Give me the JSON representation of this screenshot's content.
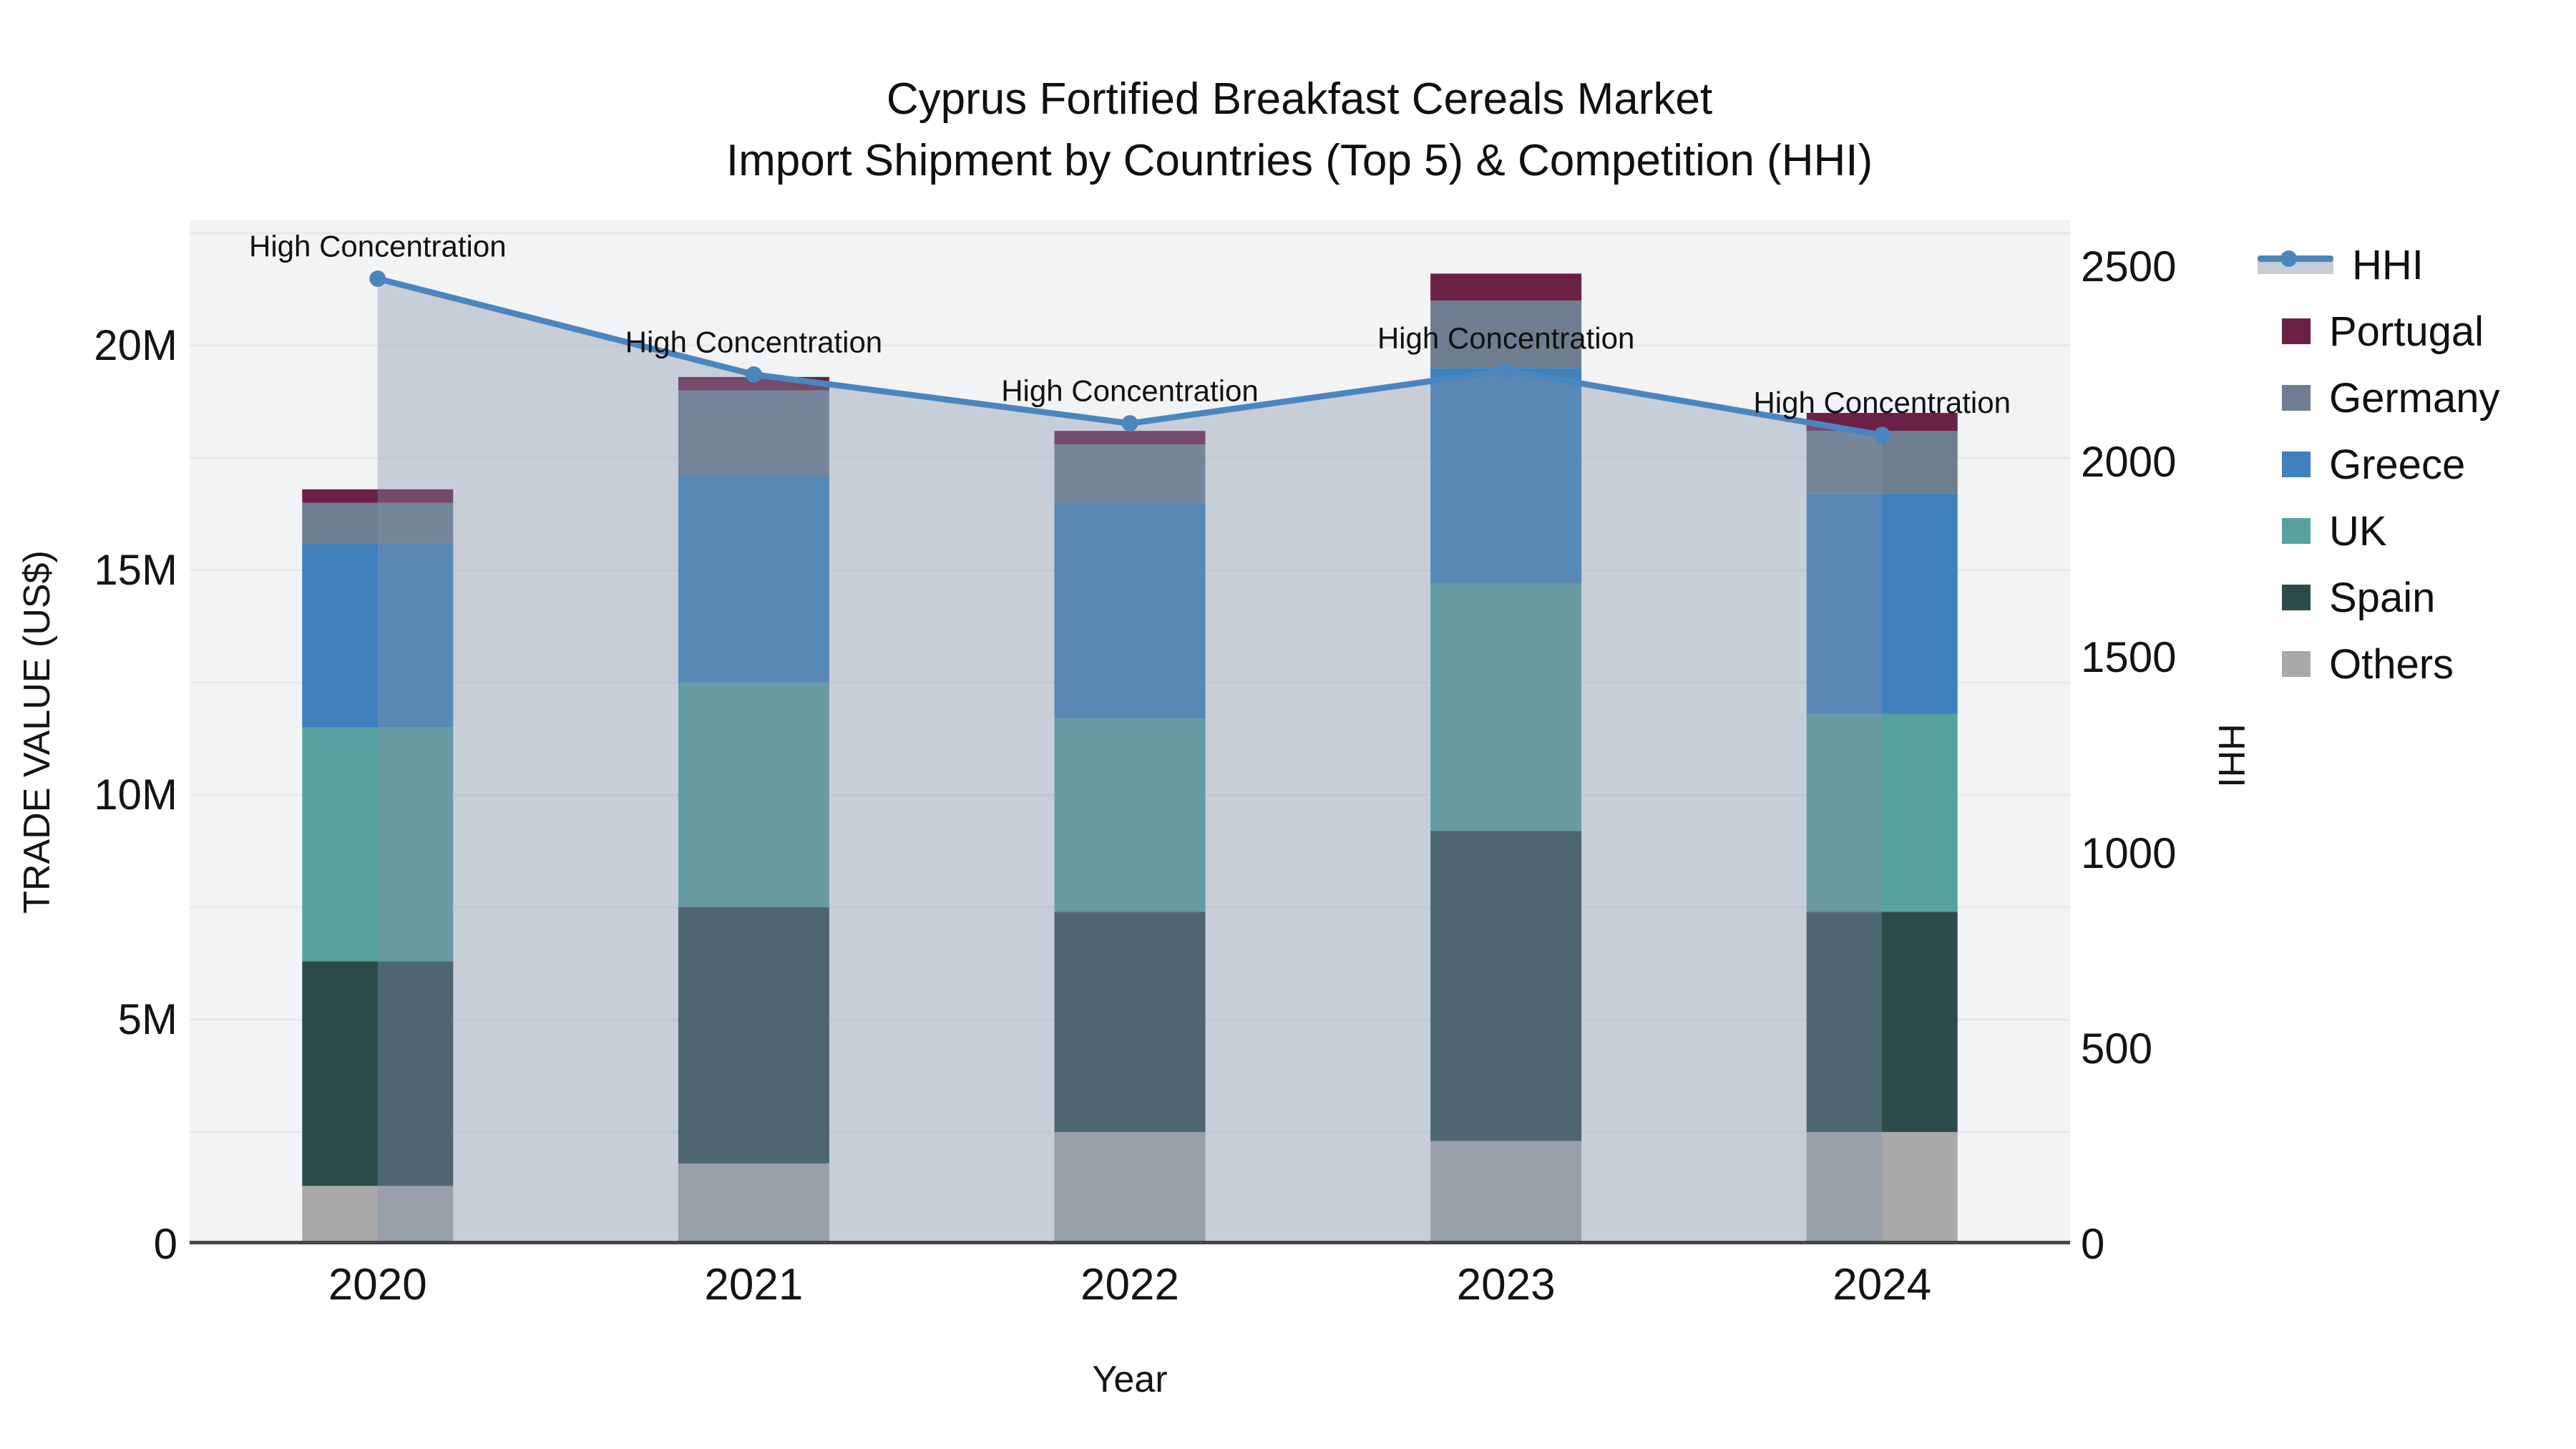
{
  "title": {
    "line1": "Cyprus Fortified Breakfast Cereals Market",
    "line2": "Import Shipment by Countries (Top 5) & Competition (HHI)"
  },
  "axes": {
    "y_left": {
      "title": "TRADE VALUE (US$)",
      "ticks": [
        {
          "label": "0",
          "value": 0
        },
        {
          "label": "5M",
          "value": 5
        },
        {
          "label": "10M",
          "value": 10
        },
        {
          "label": "15M",
          "value": 15
        },
        {
          "label": "20M",
          "value": 20
        }
      ],
      "range": [
        0,
        22.8
      ],
      "gridline_step": 2.5
    },
    "y_right": {
      "title": "HHI",
      "ticks": [
        {
          "label": "0",
          "value": 0
        },
        {
          "label": "500",
          "value": 500
        },
        {
          "label": "1000",
          "value": 1000
        },
        {
          "label": "1500",
          "value": 1500
        },
        {
          "label": "2000",
          "value": 2000
        },
        {
          "label": "2500",
          "value": 2500
        }
      ],
      "range": [
        0,
        2621
      ]
    },
    "x": {
      "title": "Year",
      "categories": [
        "2020",
        "2021",
        "2022",
        "2023",
        "2024"
      ]
    }
  },
  "legend": {
    "items": [
      {
        "label": "HHI",
        "type": "line",
        "color": "#4a86bd",
        "area_color": "#c7ced8"
      },
      {
        "label": "Portugal",
        "type": "swatch",
        "color": "#6b2045"
      },
      {
        "label": "Germany",
        "type": "swatch",
        "color": "#6e7e90"
      },
      {
        "label": "Greece",
        "type": "swatch",
        "color": "#3f80bd"
      },
      {
        "label": "UK",
        "type": "swatch",
        "color": "#57a1a0"
      },
      {
        "label": "Spain",
        "type": "swatch",
        "color": "#2d4b4b"
      },
      {
        "label": "Others",
        "type": "swatch",
        "color": "#a9a9a9"
      }
    ]
  },
  "colors": {
    "plot_background": "#f2f3f4",
    "gridline": "#e7e8ea",
    "axis_line": "#474747",
    "hhi_line": "#4a86bd",
    "hhi_area_fill": "rgba(131,146,171,0.38)",
    "annotation_text": "#111111"
  },
  "chart_data": {
    "type": "combo: stacked bar (left axis) + line with area fill (right axis)",
    "title": "Cyprus Fortified Breakfast Cereals Market — Import Shipment by Countries (Top 5) & Competition (HHI)",
    "xlabel": "Year",
    "ylabel": "TRADE VALUE (US$)",
    "y2label": "HHI",
    "categories": [
      "2020",
      "2021",
      "2022",
      "2023",
      "2024"
    ],
    "bar_value_unit": "millions of US$ (estimated from axis gridlines)",
    "stack_order_bottom_to_top": [
      "Others",
      "Spain",
      "UK",
      "Greece",
      "Germany",
      "Portugal"
    ],
    "series": [
      {
        "name": "Portugal",
        "type": "bar",
        "color": "#6b2045",
        "values": [
          0.3,
          0.3,
          0.3,
          0.6,
          0.4
        ]
      },
      {
        "name": "Germany",
        "type": "bar",
        "color": "#6e7e90",
        "values": [
          0.9,
          1.9,
          1.3,
          1.5,
          1.4
        ]
      },
      {
        "name": "Greece",
        "type": "bar",
        "color": "#3f80bd",
        "values": [
          4.1,
          4.6,
          4.8,
          4.8,
          4.9
        ]
      },
      {
        "name": "UK",
        "type": "bar",
        "color": "#57a1a0",
        "values": [
          5.2,
          5.0,
          4.3,
          5.5,
          4.4
        ]
      },
      {
        "name": "Spain",
        "type": "bar",
        "color": "#2d4b4b",
        "values": [
          5.0,
          5.7,
          4.9,
          6.9,
          4.9
        ]
      },
      {
        "name": "Others",
        "type": "bar",
        "color": "#a9a9a9",
        "values": [
          1.3,
          1.8,
          2.5,
          2.3,
          2.5
        ]
      },
      {
        "name": "HHI",
        "type": "line",
        "axis": "right",
        "color": "#4a86bd",
        "fill_to_zero": true,
        "values": [
          2470,
          2225,
          2100,
          2235,
          2070
        ]
      }
    ],
    "bar_totals": [
      16.8,
      19.3,
      18.1,
      21.6,
      18.5
    ],
    "ylim": [
      0,
      22.8
    ],
    "y2lim": [
      0,
      2621
    ],
    "grid": true,
    "legend_position": "right",
    "annotations": [
      {
        "category": "2020",
        "text": "High Concentration"
      },
      {
        "category": "2021",
        "text": "High Concentration"
      },
      {
        "category": "2022",
        "text": "High Concentration"
      },
      {
        "category": "2023",
        "text": "High Concentration"
      },
      {
        "category": "2024",
        "text": "High Concentration"
      }
    ]
  }
}
